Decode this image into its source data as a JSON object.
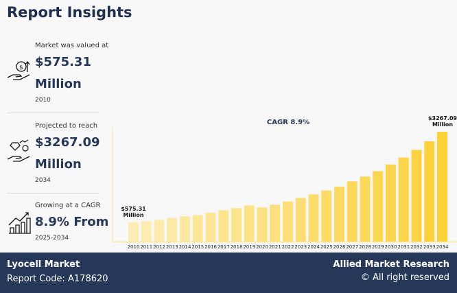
{
  "title": "Report Insights",
  "stats": [
    {
      "label": "Market was valued at",
      "value1": "$575.31",
      "value2": "Million",
      "sub": "2010",
      "icon": "money-hand-icon"
    },
    {
      "label": "Projected to reach",
      "value1": "$3267.09",
      "value2": "Million",
      "sub": "2034",
      "icon": "diamond-hand-icon"
    },
    {
      "label": "Growing at a CAGR",
      "value1": "8.9% From",
      "sub": "2025-2034",
      "icon": "growth-chart-icon"
    }
  ],
  "chart_data": {
    "type": "bar",
    "title": "CAGR 8.9%",
    "categories": [
      "2010",
      "2011",
      "2012",
      "2013",
      "2014",
      "2015",
      "2016",
      "2017",
      "2018",
      "2019",
      "2020",
      "2021",
      "2022",
      "2023",
      "2024",
      "2025",
      "2026",
      "2027",
      "2028",
      "2029",
      "2030",
      "2031",
      "2032",
      "2033",
      "2034"
    ],
    "values": [
      575.31,
      606,
      647,
      701,
      749,
      790,
      858,
      932,
      994,
      1075,
      1014,
      1096,
      1191,
      1300,
      1402,
      1518,
      1633,
      1790,
      1933,
      2096,
      2294,
      2498,
      2729,
      2981,
      3267.09
    ],
    "annotations": [
      {
        "category": "2010",
        "line1": "$575.31",
        "line2": "Million"
      },
      {
        "category": "2034",
        "line1": "$3267.09",
        "line2": "Million"
      }
    ],
    "colors": {
      "start": "#fdedb5",
      "end": "#fdd037"
    }
  },
  "footer": {
    "market": "Lyocell Market",
    "code": "Report Code: A178620",
    "brand": "Allied Market Research",
    "rights": "© All right reserved"
  }
}
